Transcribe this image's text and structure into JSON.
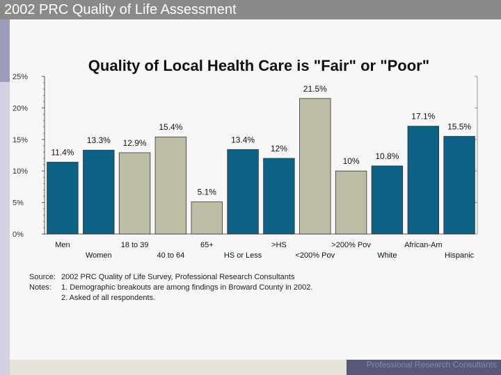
{
  "header": {
    "title": "2002 PRC Quality of Life Assessment"
  },
  "chart_data": {
    "type": "bar",
    "title": "Quality of Local Health Care is \"Fair\" or \"Poor\"",
    "categories": [
      "Men",
      "Women",
      "18 to 39",
      "40 to 64",
      "65+",
      "HS or Less",
      ">HS",
      "<200% Pov",
      ">200% Pov",
      "White",
      "African-Am",
      "Hispanic"
    ],
    "values": [
      11.4,
      13.3,
      12.9,
      15.4,
      5.1,
      13.4,
      12,
      21.5,
      10,
      10.8,
      17.1,
      15.5
    ],
    "value_labels": [
      "11.4%",
      "13.3%",
      "12.9%",
      "15.4%",
      "5.1%",
      "13.4%",
      "12%",
      "21.5%",
      "10%",
      "10.8%",
      "17.1%",
      "15.5%"
    ],
    "bar_colors": [
      "#0c6185",
      "#0c6185",
      "#bdbda6",
      "#bdbda6",
      "#bdbda6",
      "#0c6185",
      "#0c6185",
      "#bdbda6",
      "#bdbda6",
      "#0c6185",
      "#0c6185",
      "#0c6185"
    ],
    "ylim": [
      0,
      25
    ],
    "yticks": [
      0,
      5,
      10,
      15,
      20,
      25
    ],
    "ytick_labels": [
      "0%",
      "5%",
      "10%",
      "15%",
      "20%",
      "25%"
    ],
    "xlabel": "",
    "ylabel": ""
  },
  "notes": {
    "source_label": "Source:",
    "source_text": "2002 PRC Quality of Life Survey, Professional Research Consultants",
    "notes_label": "Notes:",
    "note1": "1. Demographic breakouts are among findings in Broward County in 2002.",
    "note2": "2. Asked of all respondents."
  },
  "footer": {
    "text": "Professional Research Consultants"
  }
}
